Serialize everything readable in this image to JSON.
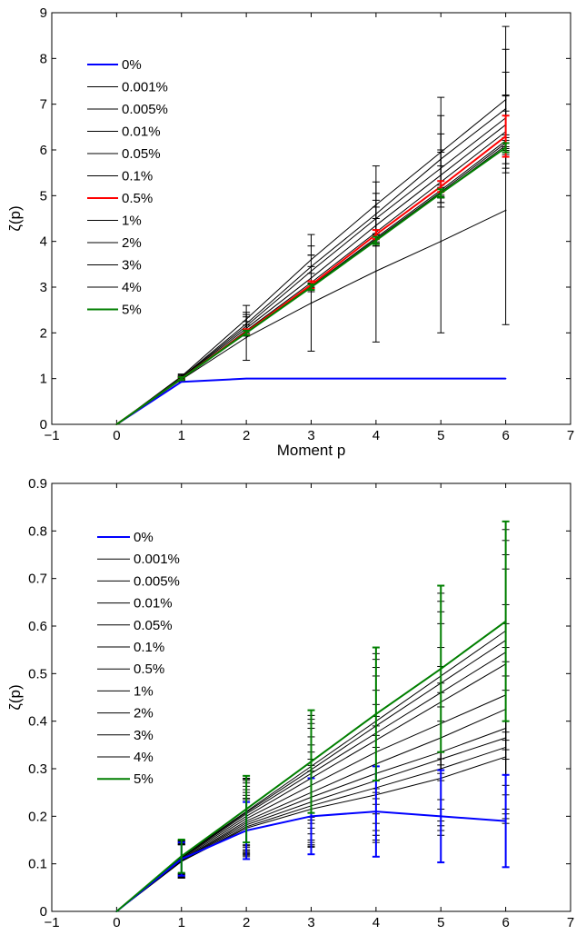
{
  "chart_data": [
    {
      "type": "line",
      "xlabel": "Moment p",
      "ylabel": "ζ(p)",
      "xlim": [
        -1,
        7
      ],
      "ylim": [
        0,
        9
      ],
      "xticks": [
        -1,
        0,
        1,
        2,
        3,
        4,
        5,
        6,
        7
      ],
      "yticks": [
        0,
        1,
        2,
        3,
        4,
        5,
        6,
        7,
        8,
        9
      ],
      "x_tick_labels": [
        "−1",
        "0",
        "1",
        "2",
        "3",
        "4",
        "5",
        "6",
        "7"
      ],
      "y_tick_labels": [
        "0",
        "1",
        "2",
        "3",
        "4",
        "5",
        "6",
        "7",
        "8",
        "9"
      ],
      "legend_position": "top-left",
      "x": [
        0,
        1,
        2,
        3,
        4,
        5,
        6
      ],
      "series": [
        {
          "name": "0%",
          "color": "#0000ff",
          "width": 2,
          "values": [
            0,
            0.93,
            1.0,
            1.0,
            1.0,
            1.0,
            1.0
          ],
          "err": [
            0,
            0,
            0,
            0,
            0,
            0,
            0
          ]
        },
        {
          "name": "0.001%",
          "color": "#000000",
          "width": 1,
          "values": [
            0,
            1.05,
            2.3,
            3.6,
            4.8,
            5.95,
            7.1
          ],
          "err": [
            0,
            0.05,
            0.3,
            0.55,
            0.85,
            1.2,
            1.6
          ]
        },
        {
          "name": "0.005%",
          "color": "#000000",
          "width": 1,
          "values": [
            0,
            1.03,
            2.2,
            3.45,
            4.6,
            5.8,
            6.9
          ],
          "err": [
            0,
            0.05,
            0.25,
            0.45,
            0.7,
            0.95,
            1.3
          ]
        },
        {
          "name": "0.01%",
          "color": "#000000",
          "width": 1,
          "values": [
            0,
            1.02,
            2.15,
            3.35,
            4.5,
            5.6,
            6.7
          ],
          "err": [
            0,
            0.04,
            0.2,
            0.35,
            0.55,
            0.75,
            1.0
          ]
        },
        {
          "name": "0.05%",
          "color": "#000000",
          "width": 1,
          "values": [
            0,
            1.01,
            2.1,
            3.2,
            4.35,
            5.45,
            6.55
          ],
          "err": [
            0,
            0.04,
            0.15,
            0.25,
            0.4,
            0.5,
            0.65
          ]
        },
        {
          "name": "0.1%",
          "color": "#000000",
          "width": 1,
          "values": [
            0,
            1.0,
            2.05,
            3.1,
            4.2,
            5.3,
            6.4
          ],
          "err": [
            0,
            0.04,
            0.12,
            0.2,
            0.3,
            0.35,
            0.45
          ]
        },
        {
          "name": "0.5%",
          "color": "#ff0000",
          "width": 2,
          "values": [
            0,
            1.0,
            2.02,
            3.05,
            4.15,
            5.2,
            6.3
          ],
          "err": [
            0,
            0.03,
            0.06,
            0.08,
            0.1,
            0.12,
            0.45
          ]
        },
        {
          "name": "1%",
          "color": "#000000",
          "width": 1,
          "values": [
            0,
            1.0,
            2.0,
            3.02,
            4.08,
            5.12,
            6.2
          ],
          "err": [
            0,
            0.03,
            0.05,
            0.07,
            0.09,
            0.11,
            0.13
          ]
        },
        {
          "name": "2%",
          "color": "#000000",
          "width": 1,
          "values": [
            0,
            1.0,
            2.0,
            3.0,
            4.05,
            5.08,
            6.15
          ],
          "err": [
            0,
            0.03,
            0.05,
            0.07,
            0.09,
            0.1,
            0.12
          ]
        },
        {
          "name": "3%",
          "color": "#000000",
          "width": 1,
          "values": [
            0,
            1.0,
            2.0,
            3.0,
            4.03,
            5.05,
            6.1
          ],
          "err": [
            0,
            0.03,
            0.05,
            0.06,
            0.08,
            0.09,
            0.11
          ]
        },
        {
          "name": "4%",
          "color": "#000000",
          "width": 1,
          "values": [
            0,
            0.98,
            1.9,
            2.65,
            3.35,
            4.0,
            4.68
          ],
          "err": [
            0,
            0.05,
            0.5,
            1.05,
            1.55,
            2.0,
            2.5
          ]
        },
        {
          "name": "5%",
          "color": "#007f00",
          "width": 2,
          "values": [
            0,
            1.0,
            2.0,
            3.0,
            4.02,
            5.05,
            6.05
          ],
          "err": [
            0,
            0.03,
            0.05,
            0.06,
            0.08,
            0.09,
            0.1
          ]
        }
      ]
    },
    {
      "type": "line",
      "xlabel": "Moment p",
      "ylabel": "ζ(p)",
      "xlim": [
        -1,
        7
      ],
      "ylim": [
        0,
        0.9
      ],
      "xticks": [
        -1,
        0,
        1,
        2,
        3,
        4,
        5,
        6,
        7
      ],
      "yticks": [
        0,
        0.1,
        0.2,
        0.3,
        0.4,
        0.5,
        0.6,
        0.7,
        0.8,
        0.9
      ],
      "x_tick_labels": [
        "−1",
        "0",
        "1",
        "2",
        "3",
        "4",
        "5",
        "6",
        "7"
      ],
      "y_tick_labels": [
        "0",
        "0.1",
        "0.2",
        "0.3",
        "0.4",
        "0.5",
        "0.6",
        "0.7",
        "0.8",
        "0.9"
      ],
      "legend_position": "top-left",
      "x": [
        0,
        1,
        2,
        3,
        4,
        5,
        6
      ],
      "series": [
        {
          "name": "0%",
          "color": "#0000ff",
          "width": 2,
          "values": [
            0,
            0.11,
            0.17,
            0.2,
            0.21,
            0.2,
            0.19
          ],
          "err": [
            0,
            0.035,
            0.06,
            0.08,
            0.095,
            0.097,
            0.097
          ]
        },
        {
          "name": "0.001%",
          "color": "#000000",
          "width": 1,
          "values": [
            0,
            0.105,
            0.175,
            0.215,
            0.245,
            0.28,
            0.325
          ],
          "err": [
            0,
            0.035,
            0.06,
            0.08,
            0.1,
            0.12,
            0.14
          ]
        },
        {
          "name": "0.005%",
          "color": "#000000",
          "width": 1,
          "values": [
            0,
            0.105,
            0.178,
            0.222,
            0.26,
            0.3,
            0.345
          ],
          "err": [
            0,
            0.035,
            0.06,
            0.085,
            0.11,
            0.13,
            0.15
          ]
        },
        {
          "name": "0.01%",
          "color": "#000000",
          "width": 1,
          "values": [
            0,
            0.106,
            0.182,
            0.23,
            0.275,
            0.32,
            0.365
          ],
          "err": [
            0,
            0.035,
            0.062,
            0.09,
            0.115,
            0.14,
            0.16
          ]
        },
        {
          "name": "0.05%",
          "color": "#000000",
          "width": 1,
          "values": [
            0,
            0.107,
            0.186,
            0.24,
            0.29,
            0.335,
            0.385
          ],
          "err": [
            0,
            0.035,
            0.064,
            0.095,
            0.12,
            0.145,
            0.17
          ]
        },
        {
          "name": "0.1%",
          "color": "#000000",
          "width": 1,
          "values": [
            0,
            0.108,
            0.19,
            0.25,
            0.31,
            0.365,
            0.425
          ],
          "err": [
            0,
            0.035,
            0.066,
            0.1,
            0.125,
            0.15,
            0.18
          ]
        },
        {
          "name": "0.5%",
          "color": "#000000",
          "width": 1,
          "values": [
            0,
            0.11,
            0.195,
            0.265,
            0.335,
            0.395,
            0.455
          ],
          "err": [
            0,
            0.035,
            0.068,
            0.102,
            0.13,
            0.16,
            0.19
          ]
        },
        {
          "name": "1%",
          "color": "#000000",
          "width": 1,
          "values": [
            0,
            0.112,
            0.2,
            0.28,
            0.36,
            0.44,
            0.52
          ],
          "err": [
            0,
            0.035,
            0.07,
            0.105,
            0.135,
            0.165,
            0.2
          ]
        },
        {
          "name": "2%",
          "color": "#000000",
          "width": 1,
          "values": [
            0,
            0.113,
            0.205,
            0.29,
            0.375,
            0.46,
            0.545
          ],
          "err": [
            0,
            0.035,
            0.07,
            0.105,
            0.138,
            0.17,
            0.205
          ]
        },
        {
          "name": "3%",
          "color": "#000000",
          "width": 1,
          "values": [
            0,
            0.114,
            0.208,
            0.298,
            0.39,
            0.48,
            0.57
          ],
          "err": [
            0,
            0.035,
            0.07,
            0.106,
            0.14,
            0.172,
            0.21
          ]
        },
        {
          "name": "4%",
          "color": "#000000",
          "width": 1,
          "values": [
            0,
            0.115,
            0.21,
            0.305,
            0.4,
            0.495,
            0.59
          ],
          "err": [
            0,
            0.035,
            0.07,
            0.107,
            0.142,
            0.174,
            0.213
          ]
        },
        {
          "name": "5%",
          "color": "#007f00",
          "width": 2,
          "values": [
            0,
            0.116,
            0.215,
            0.315,
            0.415,
            0.51,
            0.61
          ],
          "err": [
            0,
            0.035,
            0.07,
            0.108,
            0.14,
            0.175,
            0.21
          ]
        }
      ]
    }
  ]
}
